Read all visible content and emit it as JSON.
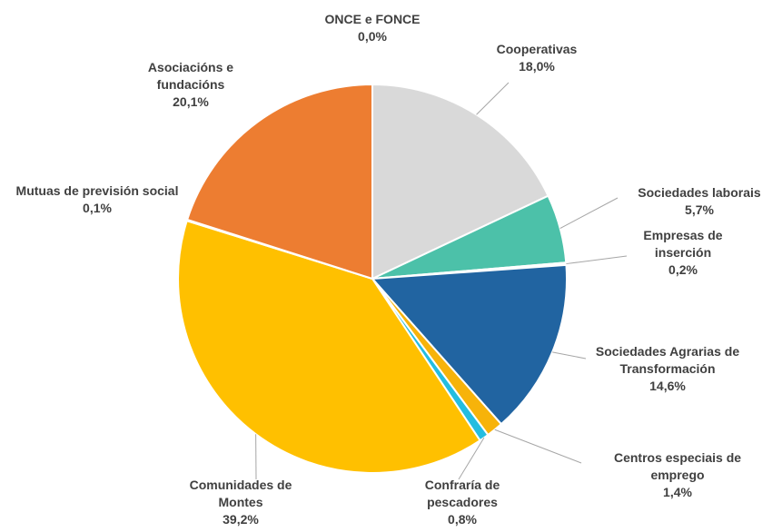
{
  "chart_data": {
    "type": "pie",
    "categories": [
      "Cooperativas",
      "Sociedades laborais",
      "Empresas de inserción",
      "Sociedades Agrarias de Transformación",
      "Centros especiais de emprego",
      "Confraría de pescadores",
      "Comunidades de Montes",
      "Mutuas de previsión social",
      "Asociacións e fundacións",
      "ONCE e FONCE"
    ],
    "values": [
      18.0,
      5.7,
      0.2,
      14.6,
      1.4,
      0.8,
      39.2,
      0.1,
      20.1,
      0.0
    ],
    "value_labels": [
      "18,0%",
      "5,7%",
      "0,2%",
      "14,6%",
      "1,4%",
      "0,8%",
      "39,2%",
      "0,1%",
      "20,1%",
      "0,0%"
    ],
    "colors": [
      "#d9d9d9",
      "#4cc1a9",
      "#ffffff",
      "#2164a1",
      "#f7b30a",
      "#24bde0",
      "#ffc000",
      "#a5a5a5",
      "#ed7d31",
      "#5b9bd5"
    ]
  }
}
